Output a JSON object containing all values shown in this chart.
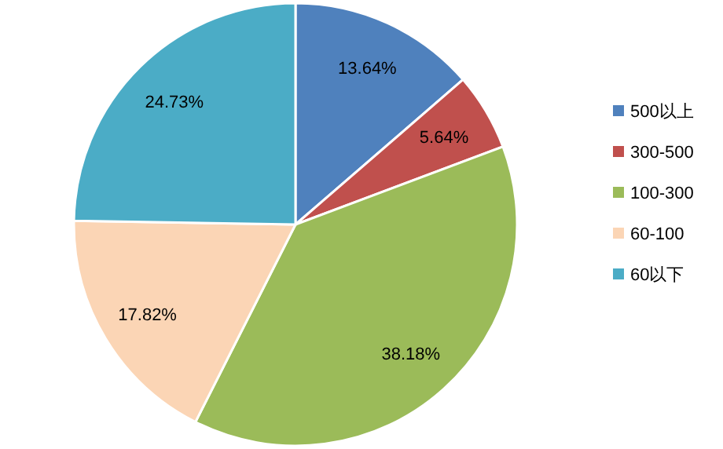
{
  "chart_data": {
    "type": "pie",
    "categories": [
      "500以上",
      "300-500",
      "100-300",
      "60-100",
      "60以下"
    ],
    "values": [
      13.64,
      5.64,
      38.18,
      17.82,
      24.73
    ],
    "colors": [
      "#4f81bd",
      "#c0504d",
      "#9bbb59",
      "#fbd5b5",
      "#4bacc6"
    ],
    "value_labels": [
      "13.64%",
      "5.64%",
      "38.18%",
      "17.82%",
      "24.73%"
    ],
    "legend": "right"
  }
}
